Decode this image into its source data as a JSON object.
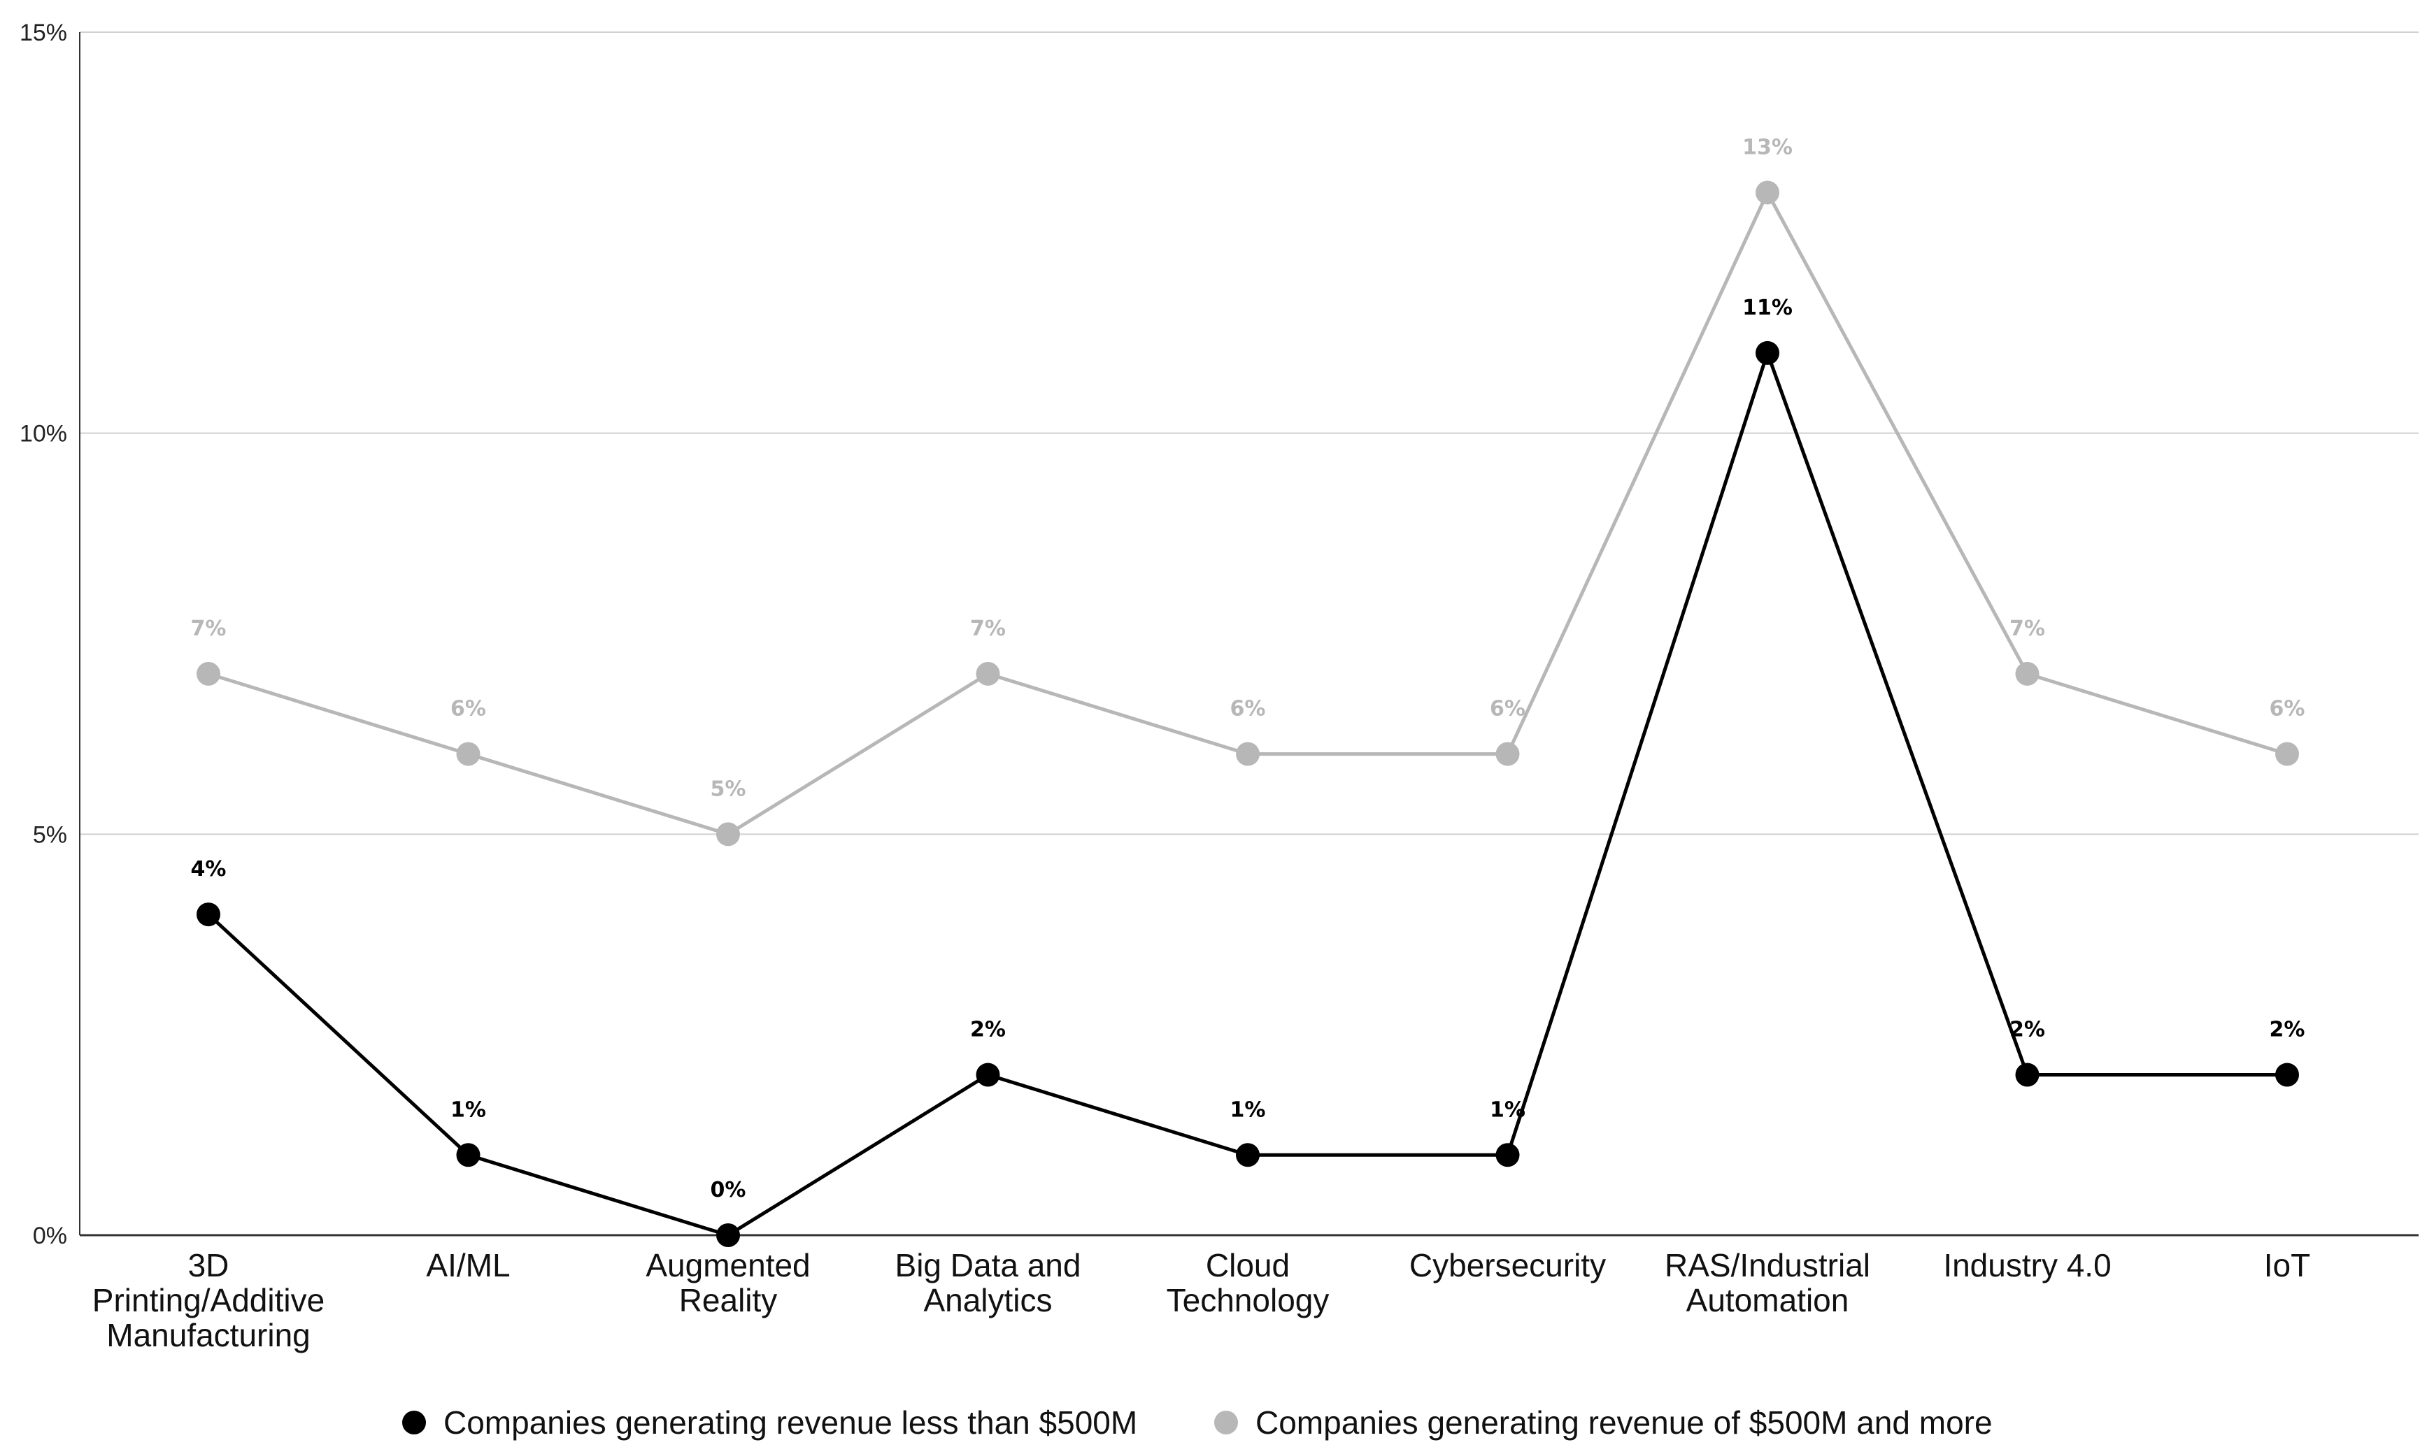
{
  "chart_data": {
    "type": "line",
    "title": "",
    "xlabel": "",
    "ylabel": "",
    "ylim": [
      0,
      15
    ],
    "yticks": [
      {
        "value": 0,
        "label": "0%"
      },
      {
        "value": 5,
        "label": "5%"
      },
      {
        "value": 10,
        "label": "10%"
      },
      {
        "value": 15,
        "label": "15%"
      }
    ],
    "grid": true,
    "legend_position": "bottom-center",
    "categories": [
      [
        "3D",
        "Printing/Additive",
        "Manufacturing"
      ],
      [
        "AI/ML"
      ],
      [
        "Augmented",
        "Reality"
      ],
      [
        "Big Data and",
        "Analytics"
      ],
      [
        "Cloud",
        "Technology"
      ],
      [
        "Cybersecurity"
      ],
      [
        "RAS/Industrial",
        "Automation"
      ],
      [
        "Industry 4.0"
      ],
      [
        "IoT"
      ]
    ],
    "series": [
      {
        "name": "Companies generating revenue less than $500M",
        "color": "#000000",
        "values": [
          4,
          1,
          0,
          2,
          1,
          1,
          11,
          2,
          2
        ],
        "labels": [
          "4%",
          "1%",
          "0%",
          "2%",
          "1%",
          "1%",
          "11%",
          "2%",
          "2%"
        ]
      },
      {
        "name": "Companies generating revenue of $500M and more",
        "color": "#b7b7b7",
        "values": [
          7,
          6,
          5,
          7,
          6,
          6,
          13,
          7,
          6
        ],
        "labels": [
          "7%",
          "6%",
          "5%",
          "7%",
          "6%",
          "6%",
          "13%",
          "7%",
          "6%"
        ]
      }
    ]
  }
}
